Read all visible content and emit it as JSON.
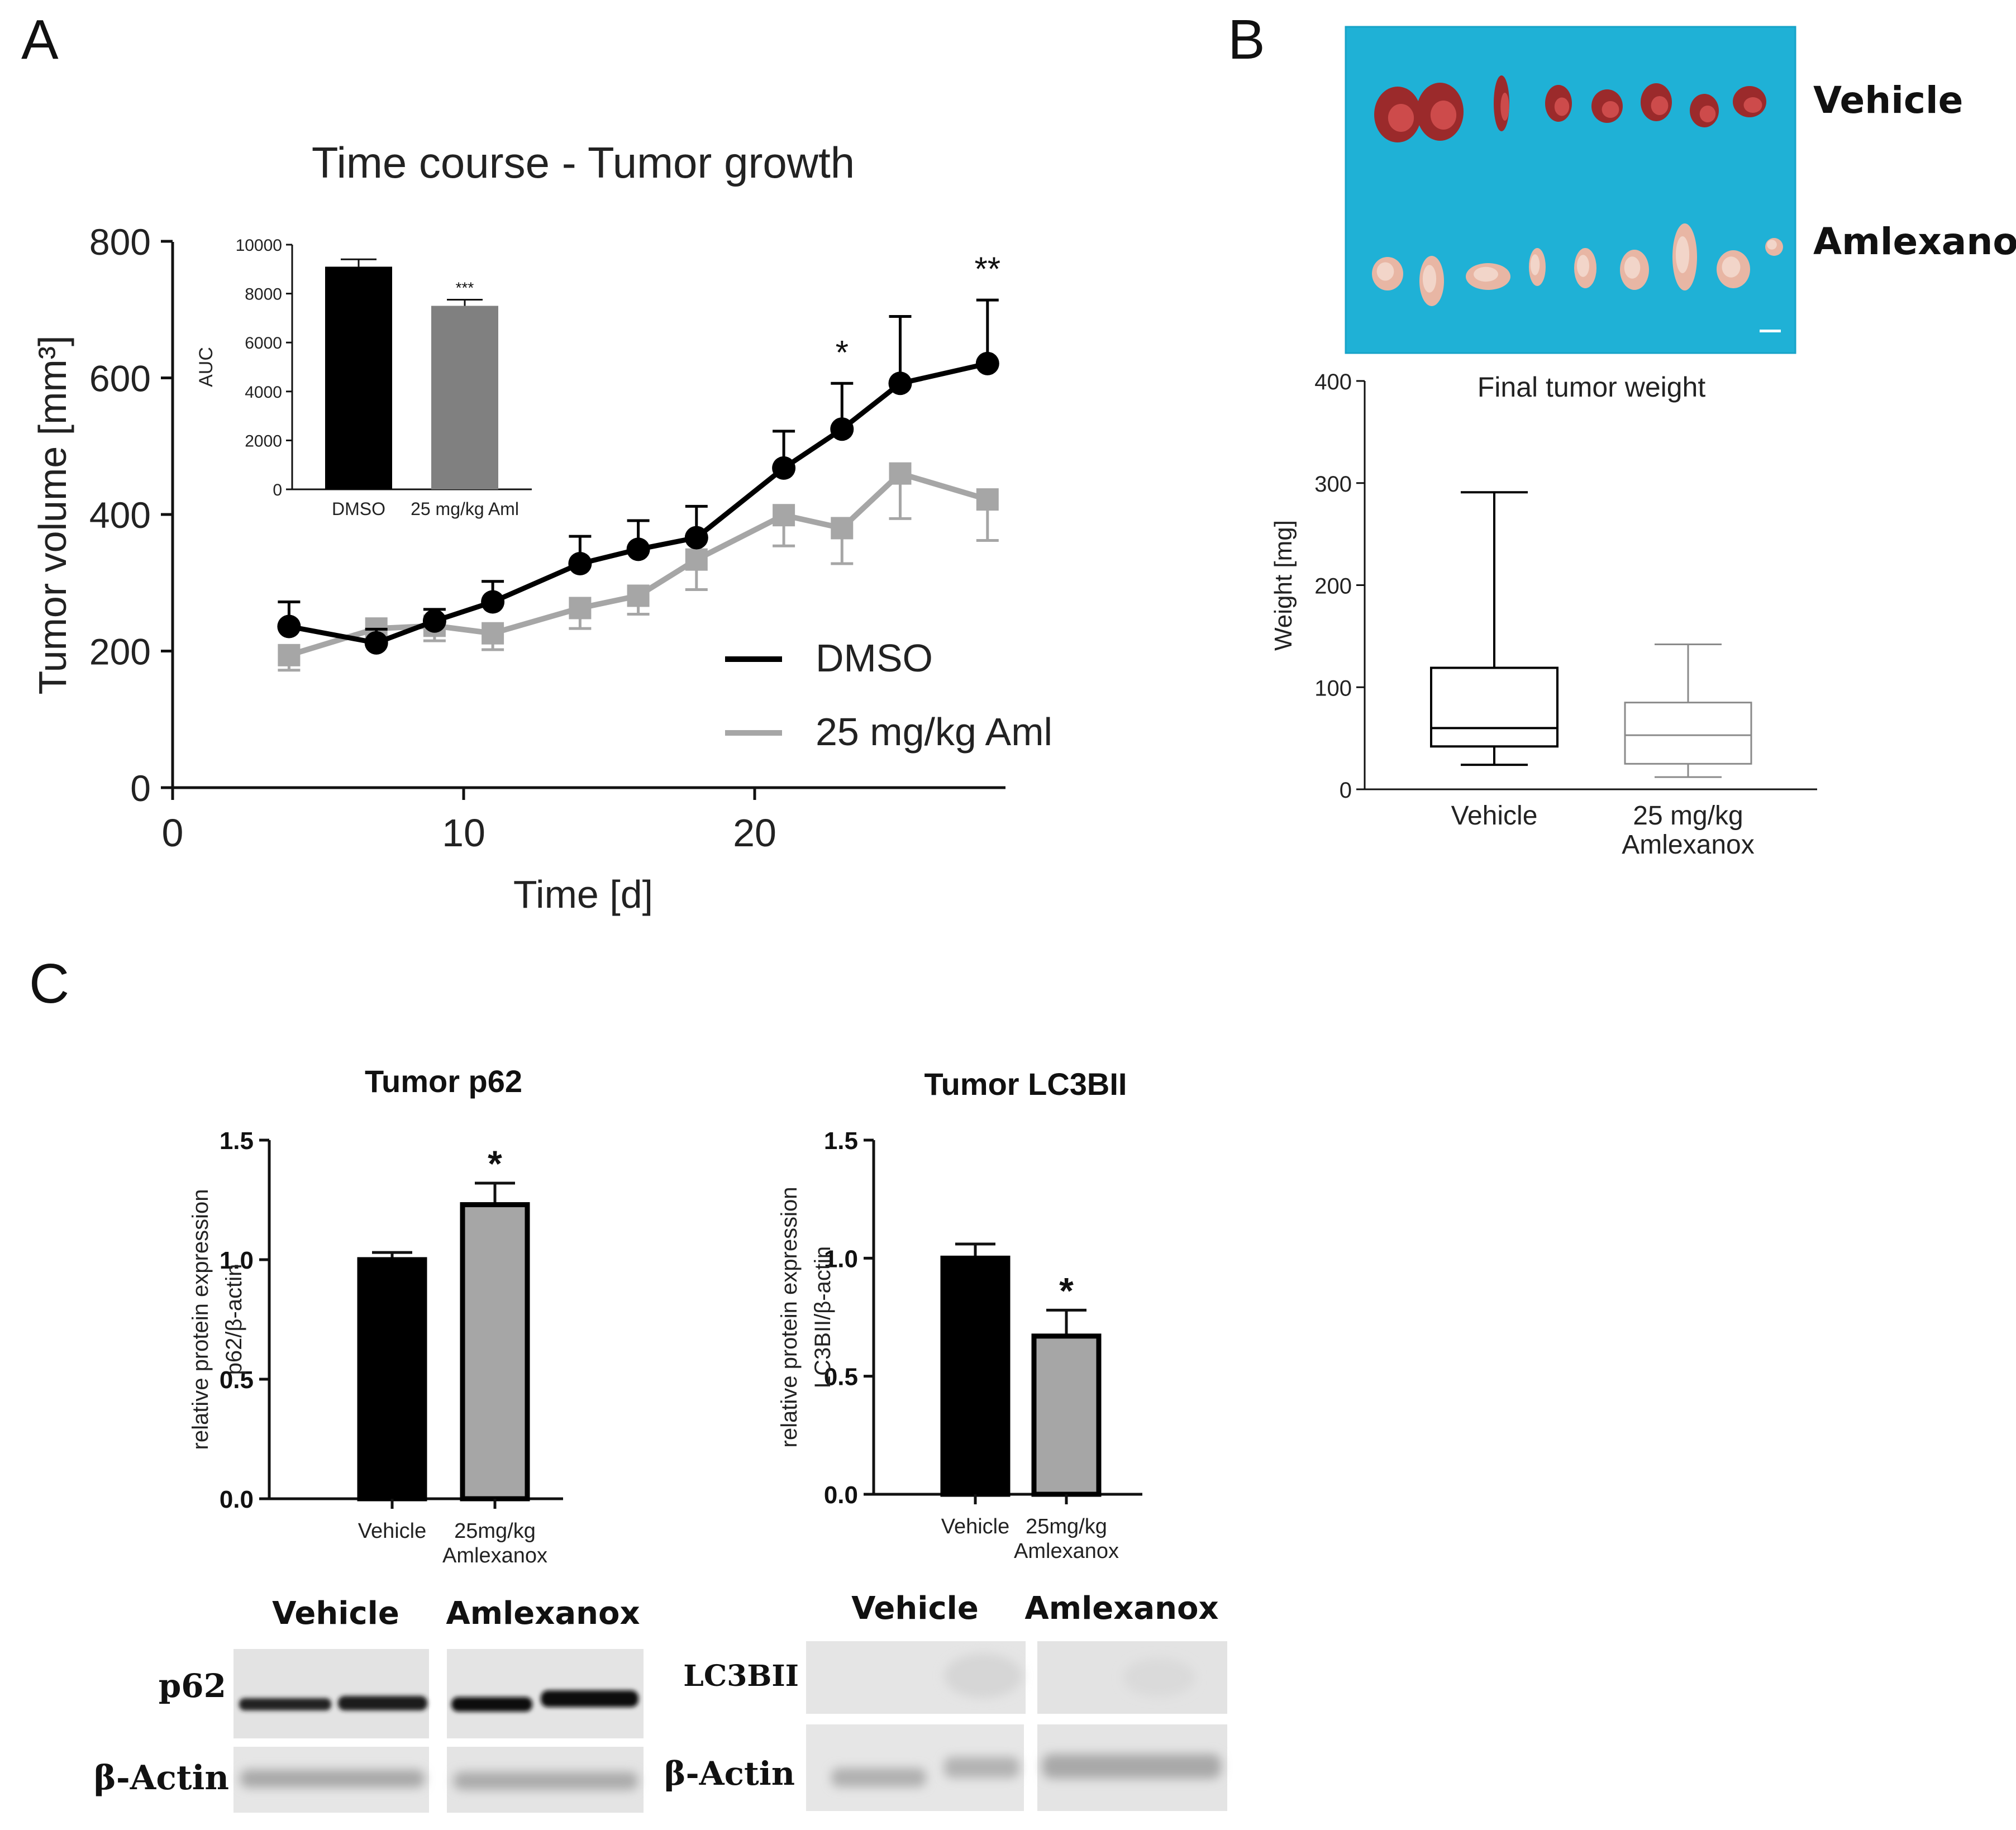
{
  "panels": {
    "A": "A",
    "B": "B",
    "C": "C"
  },
  "panelA": {
    "chart_data": {
      "type": "line",
      "title": "Time course - Tumor growth",
      "xlabel": "Time [d]",
      "ylabel": "Tumor volume [mm³]",
      "xlim": [
        0,
        28
      ],
      "ylim": [
        0,
        800
      ],
      "xticks": [
        "0",
        "10",
        "20"
      ],
      "yticks": [
        "0",
        "200",
        "400",
        "600",
        "800"
      ],
      "legend_position": "bottom-right",
      "series": [
        {
          "name": "DMSO",
          "color": "#000000",
          "x": [
            4,
            7,
            9,
            11,
            14,
            16,
            18,
            21,
            23,
            25,
            28
          ],
          "y": [
            236,
            212,
            244,
            272,
            328,
            349,
            366,
            468,
            525,
            592,
            621
          ],
          "err": [
            36,
            20,
            17,
            30,
            40,
            42,
            46,
            54,
            67,
            98,
            93
          ]
        },
        {
          "name": "25 mg/kg Aml",
          "color": "#a6a6a6",
          "x": [
            4,
            7,
            9,
            11,
            14,
            16,
            18,
            21,
            23,
            25,
            28
          ],
          "y": [
            194,
            233,
            237,
            226,
            263,
            281,
            334,
            399,
            380,
            460,
            422
          ],
          "err": [
            22,
            12,
            22,
            24,
            30,
            27,
            44,
            45,
            52,
            66,
            60
          ]
        }
      ],
      "annotations": [
        {
          "x": 23,
          "text": "*"
        },
        {
          "x": 28,
          "text": "**"
        }
      ]
    },
    "inset": {
      "chart_data": {
        "type": "bar",
        "categories": [
          "DMSO",
          "25 mg/kg Aml"
        ],
        "values": [
          9100,
          7500
        ],
        "err": [
          300,
          250
        ],
        "colors": [
          "#000000",
          "#808080"
        ],
        "ylabel": "AUC",
        "ylim": [
          0,
          10000
        ],
        "yticks": [
          "0",
          "2000",
          "4000",
          "6000",
          "8000",
          "10000"
        ],
        "annotations": [
          {
            "category": "25 mg/kg Aml",
            "text": "***"
          }
        ]
      }
    }
  },
  "panelB": {
    "photo": {
      "row1_label": "Vehicle",
      "row2_label": "Amlexanox",
      "background": "#1fb1d6"
    },
    "chart_data": {
      "type": "box",
      "title": "Final tumor weight",
      "ylabel": "Weight [mg]",
      "ylim": [
        0,
        400
      ],
      "yticks": [
        "0",
        "100",
        "200",
        "300",
        "400"
      ],
      "categories": [
        "Vehicle",
        "25 mg/kg Amlexanox"
      ],
      "boxes": [
        {
          "min": 24,
          "q1": 42,
          "median": 60,
          "q3": 119,
          "max": 291,
          "color": "#000000"
        },
        {
          "min": 12,
          "q1": 25,
          "median": 53,
          "q3": 85,
          "max": 142,
          "color": "#8a8a8a"
        }
      ]
    }
  },
  "panelC": {
    "charts": [
      {
        "chart_data": {
          "type": "bar",
          "title": "Tumor p62",
          "ylabel": "relative protein expression p62/β-actin",
          "ylim": [
            0,
            1.5
          ],
          "yticks": [
            "0.0",
            "0.5",
            "1.0",
            "1.5"
          ],
          "categories": [
            "Vehicle",
            "25mg/kg Amlexanox"
          ],
          "values": [
            1.0,
            1.23
          ],
          "err": [
            0.03,
            0.09
          ],
          "colors": [
            "#000000",
            "#a6a6a6"
          ],
          "annotations": [
            {
              "category": "25mg/kg Amlexanox",
              "text": "*"
            }
          ]
        }
      },
      {
        "chart_data": {
          "type": "bar",
          "title": "Tumor LC3BII",
          "ylabel": "relative protein expression LC3BII/β-actin",
          "ylim": [
            0,
            1.5
          ],
          "yticks": [
            "0.0",
            "0.5",
            "1.0",
            "1.5"
          ],
          "categories": [
            "Vehicle",
            "25mg/kg Amlexanox"
          ],
          "values": [
            1.0,
            0.67
          ],
          "err": [
            0.06,
            0.11
          ],
          "colors": [
            "#000000",
            "#a6a6a6"
          ],
          "annotations": [
            {
              "category": "25mg/kg Amlexanox",
              "text": "*"
            }
          ]
        }
      }
    ],
    "blots": [
      {
        "group1": "Vehicle",
        "group2": "Amlexanox",
        "protein": "p62",
        "loading": "β-Actin"
      },
      {
        "group1": "Vehicle",
        "group2": "Amlexanox",
        "protein": "LC3BII",
        "loading": "β-Actin"
      }
    ]
  }
}
